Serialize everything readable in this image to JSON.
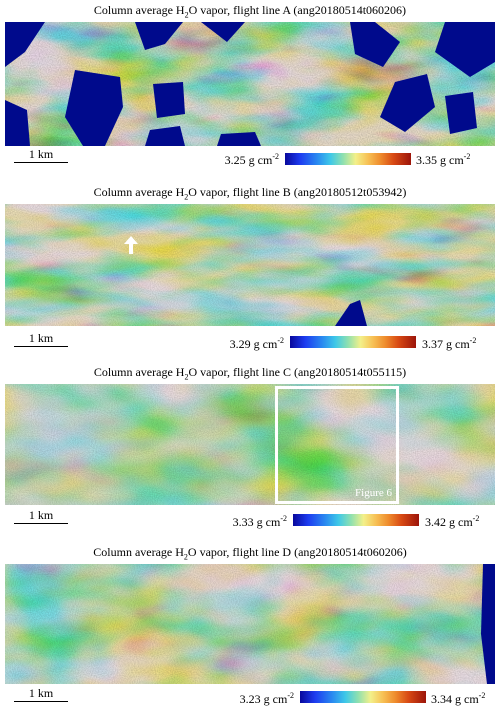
{
  "panels": [
    {
      "title_pre": "Column average  H",
      "title_sub": "2",
      "title_post": "O vapor,  flight line A (ang20180514t060206)",
      "scale_label": "1 km",
      "cbar_min_text": "3.25 g cm",
      "cbar_max_text": "3.35 g cm",
      "unit_exp": "-2"
    },
    {
      "title_pre": "Column average  H",
      "title_sub": "2",
      "title_post": "O vapor,  flight line B (ang20180512t053942)",
      "scale_label": "1 km",
      "cbar_min_text": "3.29 g cm",
      "cbar_max_text": "3.37 g cm",
      "unit_exp": "-2"
    },
    {
      "title_pre": "Column average  H",
      "title_sub": "2",
      "title_post": "O vapor,  flight line C (ang20180514t055115)",
      "scale_label": "1 km",
      "cbar_min_text": "3.33 g cm",
      "cbar_max_text": "3.42 g cm",
      "unit_exp": "-2",
      "inset_label": "Figure 6"
    },
    {
      "title_pre": "Column average  H",
      "title_sub": "2",
      "title_post": "O vapor,  flight line D (ang20180514t060206)",
      "scale_label": "1 km",
      "cbar_min_text": "3.23 g cm",
      "cbar_max_text": "3.34 g cm",
      "unit_exp": "-2"
    }
  ],
  "colors": {
    "masked": "#000a8c",
    "low": "#1d3cf0",
    "high": "#c02810",
    "frame": "#ffffff"
  },
  "icons": [
    "up-arrow-icon"
  ]
}
